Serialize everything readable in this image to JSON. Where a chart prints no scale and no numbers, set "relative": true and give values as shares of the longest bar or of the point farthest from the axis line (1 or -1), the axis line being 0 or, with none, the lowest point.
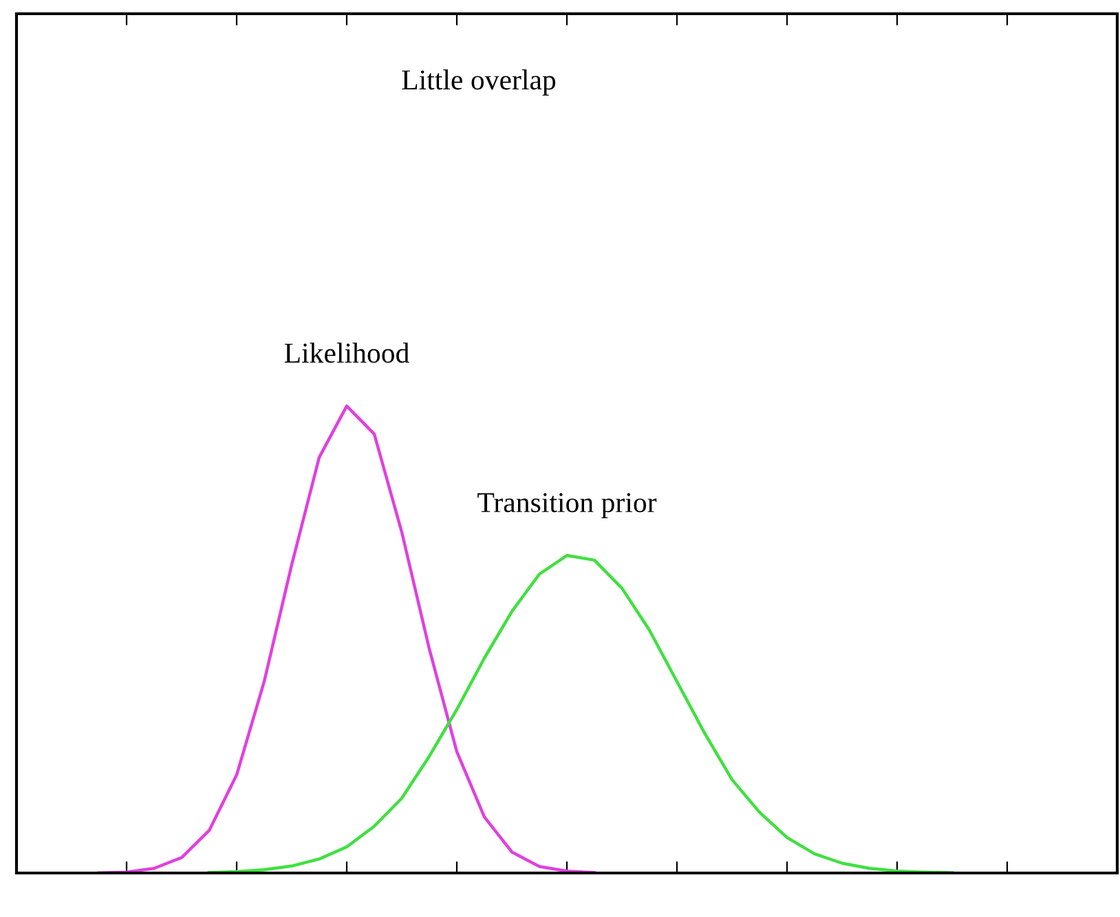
{
  "chart_data": {
    "type": "line",
    "relative": true,
    "annotations": [
      "Little overlap"
    ],
    "categories": [
      null,
      null,
      null,
      null,
      null,
      null,
      null,
      null,
      null,
      null,
      null,
      null,
      null,
      null,
      null,
      null,
      null,
      null,
      null,
      null,
      null,
      null,
      null,
      null,
      null,
      null,
      null,
      null,
      null,
      null,
      null,
      null,
      null,
      null,
      null,
      null,
      null,
      null,
      null,
      null,
      null
    ],
    "series": [
      {
        "name": "Likelihood",
        "color": "#e040e0",
        "values": [
          null,
          null,
          null,
          0.0005,
          0.002,
          0.01,
          0.033,
          0.091,
          0.21,
          0.41,
          0.66,
          0.89,
          1.0,
          0.94,
          0.73,
          0.48,
          0.26,
          0.12,
          0.045,
          0.014,
          0.004,
          0.001,
          null,
          null,
          null,
          null,
          null,
          null,
          null,
          null,
          null,
          null,
          null,
          null,
          null,
          null,
          null,
          null,
          null,
          null,
          null
        ]
      },
      {
        "name": "Transition prior",
        "color": "#40e040",
        "values": [
          null,
          null,
          null,
          null,
          null,
          null,
          null,
          0.001,
          0.003,
          0.007,
          0.015,
          0.03,
          0.056,
          0.1,
          0.16,
          0.25,
          0.35,
          0.46,
          0.56,
          0.64,
          0.68,
          0.67,
          0.61,
          0.52,
          0.41,
          0.3,
          0.2,
          0.13,
          0.076,
          0.041,
          0.021,
          0.01,
          0.004,
          0.002,
          0.001,
          null,
          null,
          null,
          null,
          null,
          null
        ]
      }
    ]
  }
}
